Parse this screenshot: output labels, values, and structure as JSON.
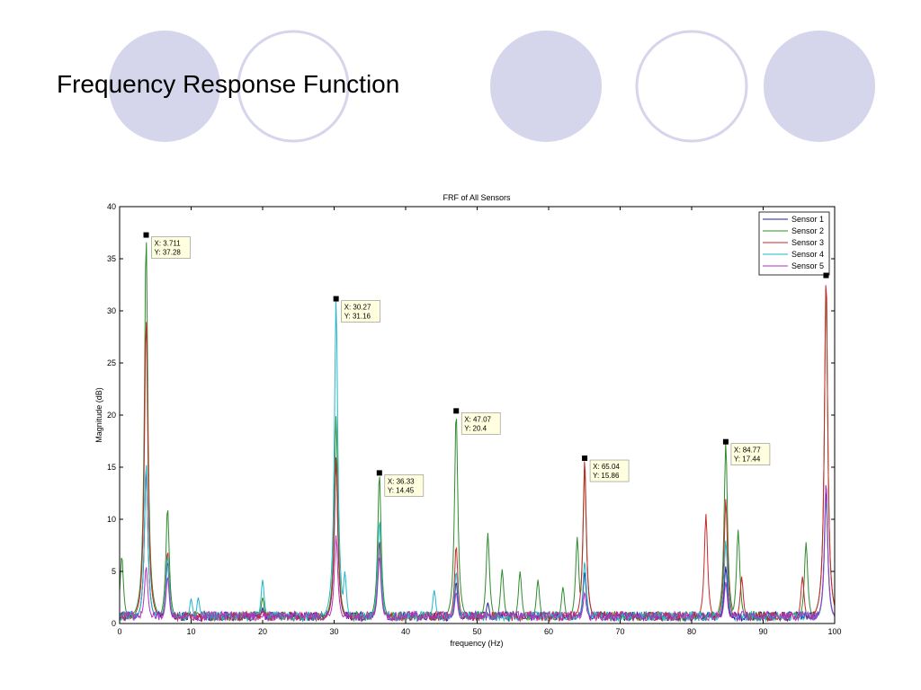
{
  "slide": {
    "title": "Frequency Response Function",
    "circle_fill": "#d5d5ec",
    "circle_stroke": "#d5d5ec"
  },
  "chart_data": {
    "type": "line",
    "title": "FRF of All Sensors",
    "xlabel": "frequency (Hz)",
    "ylabel": "Magnitude (dB)",
    "xlim": [
      0,
      100
    ],
    "ylim": [
      0,
      40
    ],
    "xticks": [
      0,
      10,
      20,
      30,
      40,
      50,
      60,
      70,
      80,
      90,
      100
    ],
    "yticks": [
      0,
      5,
      10,
      15,
      20,
      25,
      30,
      35,
      40
    ],
    "grid": false,
    "legend_position": "top-right",
    "series": [
      {
        "name": "Sensor 1",
        "color": "#1f1fa0",
        "peaks": [
          [
            3.711,
            15
          ],
          [
            6.7,
            6
          ],
          [
            20,
            1.5
          ],
          [
            30.27,
            16
          ],
          [
            36.33,
            8
          ],
          [
            47.07,
            4
          ],
          [
            51.5,
            2
          ],
          [
            65.04,
            5
          ],
          [
            84.77,
            5.5
          ],
          [
            98.8,
            13
          ]
        ]
      },
      {
        "name": "Sensor 2",
        "color": "#2e8b2e",
        "peaks": [
          [
            0.3,
            6.5
          ],
          [
            3.711,
            37.28
          ],
          [
            6.7,
            11.2
          ],
          [
            20,
            2.5
          ],
          [
            30.27,
            20
          ],
          [
            36.33,
            14.45
          ],
          [
            47.07,
            20.4
          ],
          [
            51.5,
            8.7
          ],
          [
            53.5,
            5.2
          ],
          [
            56,
            5
          ],
          [
            58.5,
            4.2
          ],
          [
            62,
            3.5
          ],
          [
            64,
            8.3
          ],
          [
            65.04,
            15
          ],
          [
            84.77,
            17.44
          ],
          [
            86.5,
            9
          ],
          [
            96,
            7.8
          ],
          [
            98.8,
            33
          ]
        ]
      },
      {
        "name": "Sensor 3",
        "color": "#c82828",
        "peaks": [
          [
            3.711,
            29.5
          ],
          [
            6.7,
            7
          ],
          [
            20,
            1.2
          ],
          [
            30.27,
            16
          ],
          [
            36.33,
            8
          ],
          [
            47.07,
            7.5
          ],
          [
            65.04,
            15.86
          ],
          [
            82,
            10.5
          ],
          [
            84.77,
            12
          ],
          [
            87,
            4.5
          ],
          [
            95.5,
            4.5
          ],
          [
            98.8,
            33.5
          ]
        ]
      },
      {
        "name": "Sensor 4",
        "color": "#20b6c8",
        "peaks": [
          [
            3.711,
            15.5
          ],
          [
            6.7,
            6.5
          ],
          [
            10,
            2.4
          ],
          [
            11,
            2.5
          ],
          [
            20,
            4.2
          ],
          [
            30.27,
            31.16
          ],
          [
            31.5,
            5
          ],
          [
            36.33,
            10
          ],
          [
            44,
            3.2
          ],
          [
            47.07,
            5
          ],
          [
            65.04,
            6
          ],
          [
            84.77,
            8
          ],
          [
            98.8,
            12
          ]
        ]
      },
      {
        "name": "Sensor 5",
        "color": "#b030c0",
        "peaks": [
          [
            3.711,
            5.5
          ],
          [
            6.7,
            4.5
          ],
          [
            30.27,
            8.5
          ],
          [
            36.33,
            6.5
          ],
          [
            47.07,
            3
          ],
          [
            65.04,
            3
          ],
          [
            84.77,
            4
          ],
          [
            98.8,
            13.7
          ]
        ]
      }
    ],
    "datatips": [
      {
        "x": 3.711,
        "y": 37.28,
        "label_x": "X: 3.711",
        "label_y": "Y: 37.28"
      },
      {
        "x": 30.27,
        "y": 31.16,
        "label_x": "X: 30.27",
        "label_y": "Y: 31.16"
      },
      {
        "x": 36.33,
        "y": 14.45,
        "label_x": "X: 36.33",
        "label_y": "Y: 14.45"
      },
      {
        "x": 47.07,
        "y": 20.4,
        "label_x": "X: 47.07",
        "label_y": "Y: 20.4"
      },
      {
        "x": 65.04,
        "y": 15.86,
        "label_x": "X: 65.04",
        "label_y": "Y: 15.86"
      },
      {
        "x": 84.77,
        "y": 17.44,
        "label_x": "X: 84.77",
        "label_y": "Y: 17.44"
      },
      {
        "x": 98.8,
        "y": 33.4
      }
    ]
  }
}
